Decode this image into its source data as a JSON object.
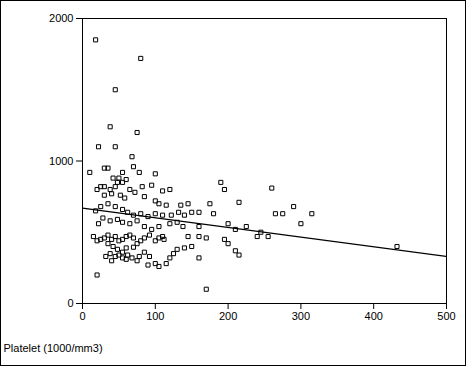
{
  "chart_data": {
    "type": "scatter",
    "x_label": "Platelet (1000/mm3)",
    "marker": "square",
    "xlim": [
      0,
      500
    ],
    "ylim": [
      0,
      2000
    ],
    "xticks": [
      0,
      100,
      200,
      300,
      400,
      500
    ],
    "yticks": [
      0,
      1000,
      2000
    ],
    "x": [
      18,
      80,
      45,
      38,
      75,
      22,
      45,
      10,
      35,
      30,
      68,
      70,
      55,
      78,
      100,
      42,
      50,
      55,
      60,
      48,
      30,
      25,
      38,
      65,
      82,
      95,
      20,
      45,
      110,
      120,
      190,
      260,
      195,
      175,
      215,
      290,
      145,
      135,
      300,
      315,
      265,
      275,
      30,
      40,
      52,
      58,
      72,
      85,
      100,
      105,
      115,
      18,
      25,
      35,
      45,
      55,
      62,
      70,
      80,
      90,
      100,
      110,
      122,
      132,
      140,
      150,
      160,
      180,
      15,
      22,
      28,
      38,
      48,
      55,
      65,
      75,
      85,
      95,
      105,
      120,
      130,
      138,
      160,
      200,
      210,
      225,
      245,
      255,
      240,
      195,
      200,
      210,
      215,
      170,
      150,
      140,
      130,
      125,
      110,
      105,
      100,
      92,
      85,
      80,
      75,
      70,
      65,
      60,
      55,
      50,
      45,
      40,
      35,
      30,
      25,
      20,
      35,
      42,
      48,
      55,
      62,
      68,
      75,
      55,
      45,
      38,
      32,
      40,
      60,
      90,
      100,
      105,
      115,
      92,
      85,
      78,
      120,
      160,
      170,
      20,
      50,
      432,
      60,
      70,
      112,
      145,
      160
    ],
    "values": [
      1850,
      1720,
      1500,
      1240,
      1200,
      1100,
      1100,
      920,
      950,
      950,
      1030,
      960,
      920,
      920,
      910,
      880,
      880,
      850,
      870,
      850,
      820,
      820,
      800,
      800,
      820,
      830,
      800,
      820,
      790,
      800,
      850,
      810,
      800,
      700,
      710,
      680,
      700,
      690,
      560,
      630,
      630,
      630,
      760,
      770,
      760,
      740,
      780,
      750,
      720,
      700,
      690,
      650,
      680,
      700,
      680,
      660,
      640,
      620,
      630,
      610,
      630,
      620,
      620,
      640,
      620,
      640,
      640,
      630,
      470,
      560,
      600,
      580,
      590,
      570,
      560,
      580,
      540,
      520,
      540,
      560,
      570,
      540,
      540,
      560,
      520,
      540,
      500,
      470,
      470,
      450,
      420,
      370,
      340,
      460,
      400,
      390,
      380,
      350,
      470,
      460,
      440,
      480,
      460,
      440,
      420,
      460,
      480,
      470,
      450,
      440,
      470,
      450,
      480,
      460,
      450,
      440,
      420,
      400,
      380,
      360,
      340,
      320,
      300,
      320,
      330,
      350,
      330,
      300,
      310,
      270,
      280,
      260,
      280,
      330,
      360,
      330,
      320,
      320,
      100,
      200,
      340,
      400,
      390,
      395,
      450,
      470,
      470
    ],
    "fit_line": {
      "x": [
        0,
        500
      ],
      "values": [
        670,
        330
      ]
    }
  }
}
